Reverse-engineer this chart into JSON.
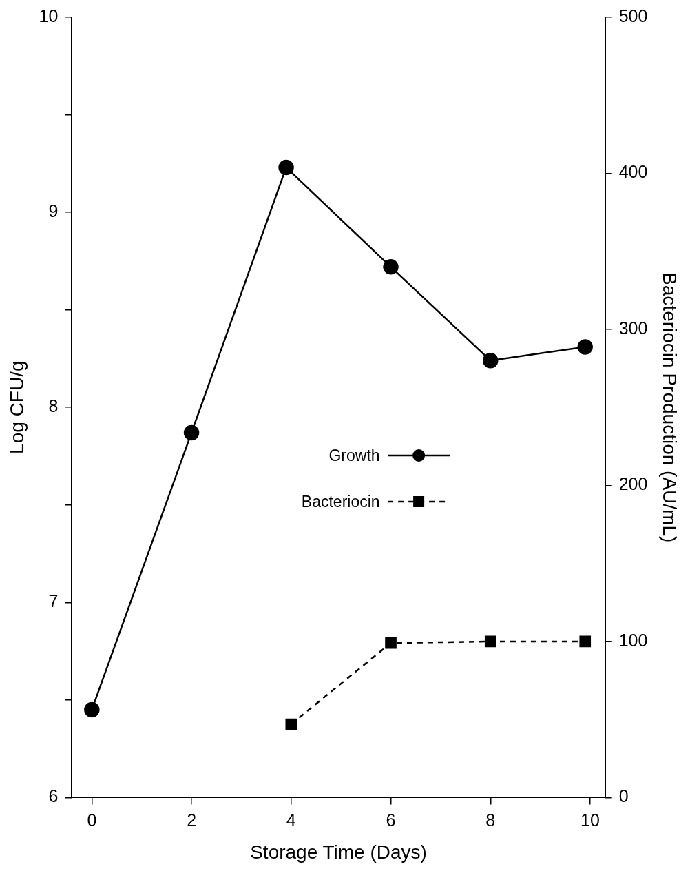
{
  "chart_data": {
    "type": "line",
    "xlabel": "Storage Time (Days)",
    "ylabel": "Log CFU/g",
    "y2label": "Bacteriocin Production (AU/mL)",
    "xlim": [
      -0.4,
      10.3
    ],
    "xticks": [
      0,
      2,
      4,
      6,
      8,
      10
    ],
    "ylim": [
      6,
      10
    ],
    "yticks": [
      6,
      {
        "value": 6.5,
        "label": null
      },
      7,
      {
        "value": 7.5,
        "label": null
      },
      8,
      {
        "value": 8.5,
        "label": null
      },
      9,
      {
        "value": 9.5,
        "label": null
      },
      10
    ],
    "y2lim": [
      0,
      500
    ],
    "y2ticks": [
      0,
      100,
      200,
      300,
      400,
      500
    ],
    "legend": "center",
    "series": [
      {
        "name": "Growth",
        "color": "#000000",
        "marker": "circle",
        "line_style": "solid",
        "x": [
          0,
          2,
          3.9,
          6,
          8,
          9.9
        ],
        "values": [
          6.45,
          7.87,
          9.23,
          8.72,
          8.24,
          8.31
        ]
      },
      {
        "name": "Bacteriocin",
        "color": "#000000",
        "marker": "square",
        "line_style": "dashed",
        "axis": "y2",
        "x": [
          4,
          6,
          8,
          9.9
        ],
        "values": [
          47,
          99,
          100,
          100
        ]
      }
    ]
  }
}
